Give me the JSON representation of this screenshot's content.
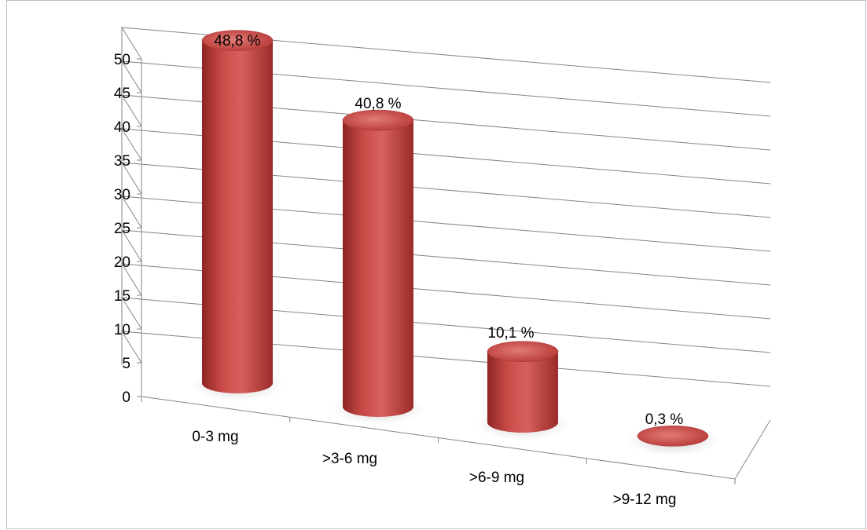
{
  "chart_data": {
    "type": "bar",
    "style": "3d-cylinder",
    "categories": [
      "0-3 mg",
      ">3-6 mg",
      ">6-9 mg",
      ">9-12 mg"
    ],
    "values": [
      48.8,
      40.8,
      10.1,
      0.3
    ],
    "data_labels": [
      "48,8 %",
      "40,8 %",
      "10,1 %",
      "0,3 %"
    ],
    "yticks": [
      "0",
      "5",
      "10",
      "15",
      "20",
      "25",
      "30",
      "35",
      "40",
      "45",
      "50"
    ],
    "ylim": [
      0,
      50
    ],
    "grid": true,
    "legend": "none",
    "bar_color": "#c0413f"
  }
}
